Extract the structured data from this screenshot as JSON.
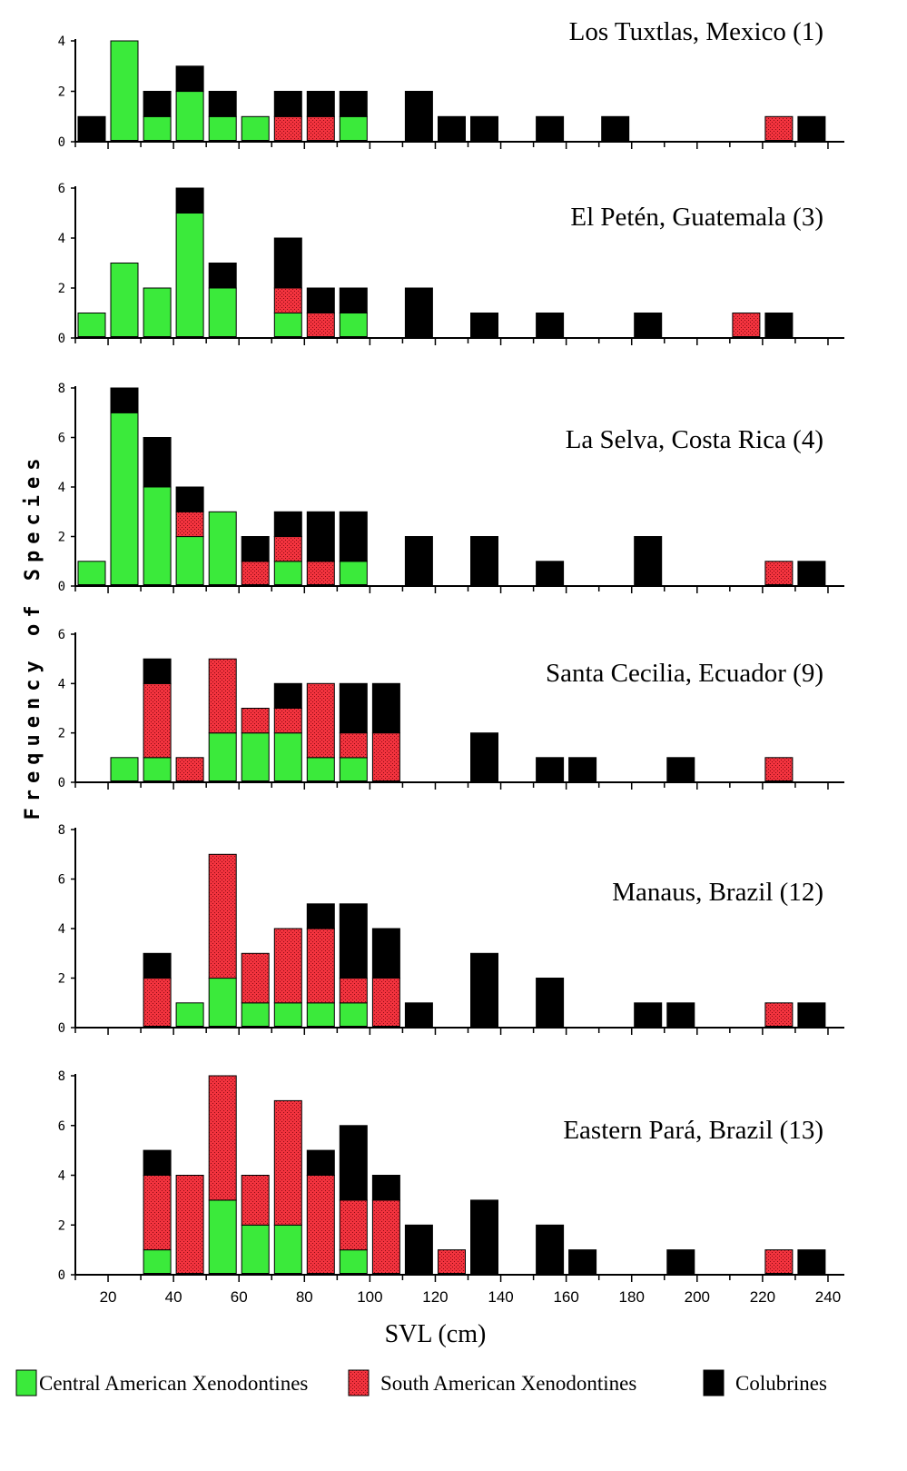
{
  "chart_data": {
    "type": "bar",
    "stacked": true,
    "xlabel": "SVL (cm)",
    "ylabel": "Frequency of Species",
    "x_ticks": [
      20,
      40,
      60,
      80,
      100,
      120,
      140,
      160,
      180,
      200,
      220,
      240
    ],
    "xlim": [
      10,
      245
    ],
    "bin_width": 10,
    "colors": {
      "central": "#3bea3b",
      "south": "#f2333e",
      "col": "#000000"
    },
    "legend": [
      {
        "key": "central",
        "label": "Central American Xenodontines"
      },
      {
        "key": "south",
        "label": "South American Xenodontines"
      },
      {
        "key": "col",
        "label": "Colubrines"
      }
    ],
    "panels": [
      {
        "title": "Los Tuxtlas, Mexico (1)",
        "ylim": [
          0,
          4
        ],
        "y_ticks": [
          0,
          2,
          4
        ],
        "bars": [
          {
            "x": 15,
            "central": 0,
            "south": 0,
            "col": 1
          },
          {
            "x": 25,
            "central": 4,
            "south": 0,
            "col": 0
          },
          {
            "x": 35,
            "central": 1,
            "south": 0,
            "col": 1
          },
          {
            "x": 45,
            "central": 2,
            "south": 0,
            "col": 1
          },
          {
            "x": 55,
            "central": 1,
            "south": 0,
            "col": 1
          },
          {
            "x": 65,
            "central": 1,
            "south": 0,
            "col": 0
          },
          {
            "x": 75,
            "central": 0,
            "south": 1,
            "col": 1
          },
          {
            "x": 85,
            "central": 0,
            "south": 1,
            "col": 1
          },
          {
            "x": 95,
            "central": 1,
            "south": 0,
            "col": 1
          },
          {
            "x": 115,
            "central": 0,
            "south": 0,
            "col": 2
          },
          {
            "x": 125,
            "central": 0,
            "south": 0,
            "col": 1
          },
          {
            "x": 135,
            "central": 0,
            "south": 0,
            "col": 1
          },
          {
            "x": 155,
            "central": 0,
            "south": 0,
            "col": 1
          },
          {
            "x": 175,
            "central": 0,
            "south": 0,
            "col": 1
          },
          {
            "x": 225,
            "central": 0,
            "south": 1,
            "col": 0
          },
          {
            "x": 235,
            "central": 0,
            "south": 0,
            "col": 1
          }
        ]
      },
      {
        "title": "El Petén, Guatemala (3)",
        "ylim": [
          0,
          6
        ],
        "y_ticks": [
          0,
          2,
          4,
          6
        ],
        "bars": [
          {
            "x": 15,
            "central": 1,
            "south": 0,
            "col": 0
          },
          {
            "x": 25,
            "central": 3,
            "south": 0,
            "col": 0
          },
          {
            "x": 35,
            "central": 2,
            "south": 0,
            "col": 0
          },
          {
            "x": 45,
            "central": 5,
            "south": 0,
            "col": 1
          },
          {
            "x": 55,
            "central": 2,
            "south": 0,
            "col": 1
          },
          {
            "x": 75,
            "central": 1,
            "south": 1,
            "col": 2
          },
          {
            "x": 85,
            "central": 0,
            "south": 1,
            "col": 1
          },
          {
            "x": 95,
            "central": 1,
            "south": 0,
            "col": 1
          },
          {
            "x": 115,
            "central": 0,
            "south": 0,
            "col": 2
          },
          {
            "x": 135,
            "central": 0,
            "south": 0,
            "col": 1
          },
          {
            "x": 155,
            "central": 0,
            "south": 0,
            "col": 1
          },
          {
            "x": 185,
            "central": 0,
            "south": 0,
            "col": 1
          },
          {
            "x": 215,
            "central": 0,
            "south": 1,
            "col": 0
          },
          {
            "x": 225,
            "central": 0,
            "south": 0,
            "col": 1
          }
        ]
      },
      {
        "title": "La Selva, Costa Rica (4)",
        "ylim": [
          0,
          8
        ],
        "y_ticks": [
          0,
          2,
          4,
          6,
          8
        ],
        "bars": [
          {
            "x": 15,
            "central": 1,
            "south": 0,
            "col": 0
          },
          {
            "x": 25,
            "central": 7,
            "south": 0,
            "col": 1
          },
          {
            "x": 35,
            "central": 4,
            "south": 0,
            "col": 2
          },
          {
            "x": 45,
            "central": 2,
            "south": 1,
            "col": 1
          },
          {
            "x": 55,
            "central": 3,
            "south": 0,
            "col": 0
          },
          {
            "x": 65,
            "central": 0,
            "south": 1,
            "col": 1
          },
          {
            "x": 75,
            "central": 1,
            "south": 1,
            "col": 1
          },
          {
            "x": 85,
            "central": 0,
            "south": 1,
            "col": 2
          },
          {
            "x": 95,
            "central": 1,
            "south": 0,
            "col": 2
          },
          {
            "x": 115,
            "central": 0,
            "south": 0,
            "col": 2
          },
          {
            "x": 135,
            "central": 0,
            "south": 0,
            "col": 2
          },
          {
            "x": 155,
            "central": 0,
            "south": 0,
            "col": 1
          },
          {
            "x": 185,
            "central": 0,
            "south": 0,
            "col": 2
          },
          {
            "x": 225,
            "central": 0,
            "south": 1,
            "col": 0
          },
          {
            "x": 235,
            "central": 0,
            "south": 0,
            "col": 1
          }
        ]
      },
      {
        "title": "Santa Cecilia, Ecuador (9)",
        "ylim": [
          0,
          6
        ],
        "y_ticks": [
          0,
          2,
          4,
          6
        ],
        "bars": [
          {
            "x": 25,
            "central": 1,
            "south": 0,
            "col": 0
          },
          {
            "x": 35,
            "central": 1,
            "south": 3,
            "col": 1
          },
          {
            "x": 45,
            "central": 0,
            "south": 1,
            "col": 0
          },
          {
            "x": 55,
            "central": 2,
            "south": 3,
            "col": 0
          },
          {
            "x": 65,
            "central": 2,
            "south": 1,
            "col": 0
          },
          {
            "x": 75,
            "central": 2,
            "south": 1,
            "col": 1
          },
          {
            "x": 85,
            "central": 1,
            "south": 3,
            "col": 0
          },
          {
            "x": 95,
            "central": 1,
            "south": 1,
            "col": 2
          },
          {
            "x": 105,
            "central": 0,
            "south": 2,
            "col": 2
          },
          {
            "x": 135,
            "central": 0,
            "south": 0,
            "col": 2
          },
          {
            "x": 155,
            "central": 0,
            "south": 0,
            "col": 1
          },
          {
            "x": 165,
            "central": 0,
            "south": 0,
            "col": 1
          },
          {
            "x": 195,
            "central": 0,
            "south": 0,
            "col": 1
          },
          {
            "x": 225,
            "central": 0,
            "south": 1,
            "col": 0
          }
        ]
      },
      {
        "title": "Manaus, Brazil (12)",
        "ylim": [
          0,
          8
        ],
        "y_ticks": [
          0,
          2,
          4,
          6,
          8
        ],
        "bars": [
          {
            "x": 35,
            "central": 0,
            "south": 2,
            "col": 1
          },
          {
            "x": 45,
            "central": 1,
            "south": 0,
            "col": 0
          },
          {
            "x": 55,
            "central": 2,
            "south": 5,
            "col": 0
          },
          {
            "x": 65,
            "central": 1,
            "south": 2,
            "col": 0
          },
          {
            "x": 75,
            "central": 1,
            "south": 3,
            "col": 0
          },
          {
            "x": 85,
            "central": 1,
            "south": 3,
            "col": 1
          },
          {
            "x": 95,
            "central": 1,
            "south": 1,
            "col": 3
          },
          {
            "x": 105,
            "central": 0,
            "south": 2,
            "col": 2
          },
          {
            "x": 115,
            "central": 0,
            "south": 0,
            "col": 1
          },
          {
            "x": 135,
            "central": 0,
            "south": 0,
            "col": 3
          },
          {
            "x": 155,
            "central": 0,
            "south": 0,
            "col": 2
          },
          {
            "x": 185,
            "central": 0,
            "south": 0,
            "col": 1
          },
          {
            "x": 195,
            "central": 0,
            "south": 0,
            "col": 1
          },
          {
            "x": 225,
            "central": 0,
            "south": 1,
            "col": 0
          },
          {
            "x": 235,
            "central": 0,
            "south": 0,
            "col": 1
          }
        ]
      },
      {
        "title": "Eastern Pará, Brazil (13)",
        "ylim": [
          0,
          8
        ],
        "y_ticks": [
          0,
          2,
          4,
          6,
          8
        ],
        "bars": [
          {
            "x": 35,
            "central": 1,
            "south": 3,
            "col": 1
          },
          {
            "x": 45,
            "central": 0,
            "south": 4,
            "col": 0
          },
          {
            "x": 55,
            "central": 3,
            "south": 5,
            "col": 0
          },
          {
            "x": 65,
            "central": 2,
            "south": 2,
            "col": 0
          },
          {
            "x": 75,
            "central": 2,
            "south": 5,
            "col": 0
          },
          {
            "x": 85,
            "central": 0,
            "south": 4,
            "col": 1
          },
          {
            "x": 95,
            "central": 1,
            "south": 2,
            "col": 3
          },
          {
            "x": 105,
            "central": 0,
            "south": 3,
            "col": 1
          },
          {
            "x": 115,
            "central": 0,
            "south": 0,
            "col": 2
          },
          {
            "x": 125,
            "central": 0,
            "south": 1,
            "col": 0
          },
          {
            "x": 135,
            "central": 0,
            "south": 0,
            "col": 3
          },
          {
            "x": 155,
            "central": 0,
            "south": 0,
            "col": 2
          },
          {
            "x": 165,
            "central": 0,
            "south": 0,
            "col": 1
          },
          {
            "x": 195,
            "central": 0,
            "south": 0,
            "col": 1
          },
          {
            "x": 225,
            "central": 0,
            "south": 1,
            "col": 0
          },
          {
            "x": 235,
            "central": 0,
            "south": 0,
            "col": 1
          }
        ]
      }
    ]
  }
}
